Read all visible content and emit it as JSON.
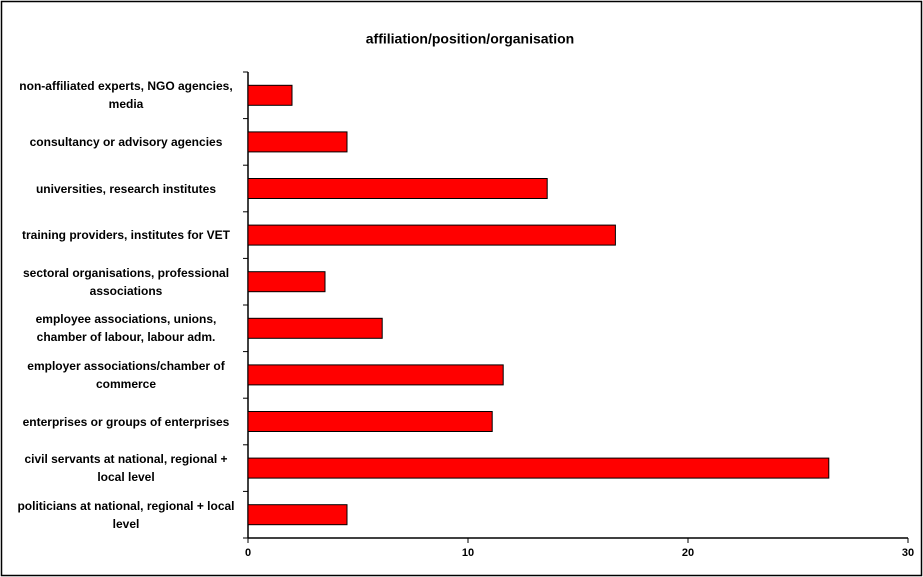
{
  "chart_data": {
    "type": "barh",
    "title": "affiliation/position/organisation",
    "categories": [
      "non-affiliated experts, NGO agencies, media",
      "consultancy or advisory agencies",
      "universities, research institutes",
      "training providers, institutes for VET",
      "sectoral organisations, professional associations",
      "employee associations, unions, chamber of labour, labour adm.",
      "employer associations/chamber of commerce",
      "enterprises or groups of enterprises",
      "civil servants at national, regional + local level",
      "politicians at national, regional + local level"
    ],
    "values": [
      2.0,
      4.5,
      13.6,
      16.7,
      3.5,
      6.1,
      11.6,
      11.1,
      26.4,
      4.5
    ],
    "color": "#ff0000",
    "xlim": [
      0,
      30
    ],
    "xticks": [
      0,
      10,
      20,
      30
    ],
    "grid": false
  }
}
